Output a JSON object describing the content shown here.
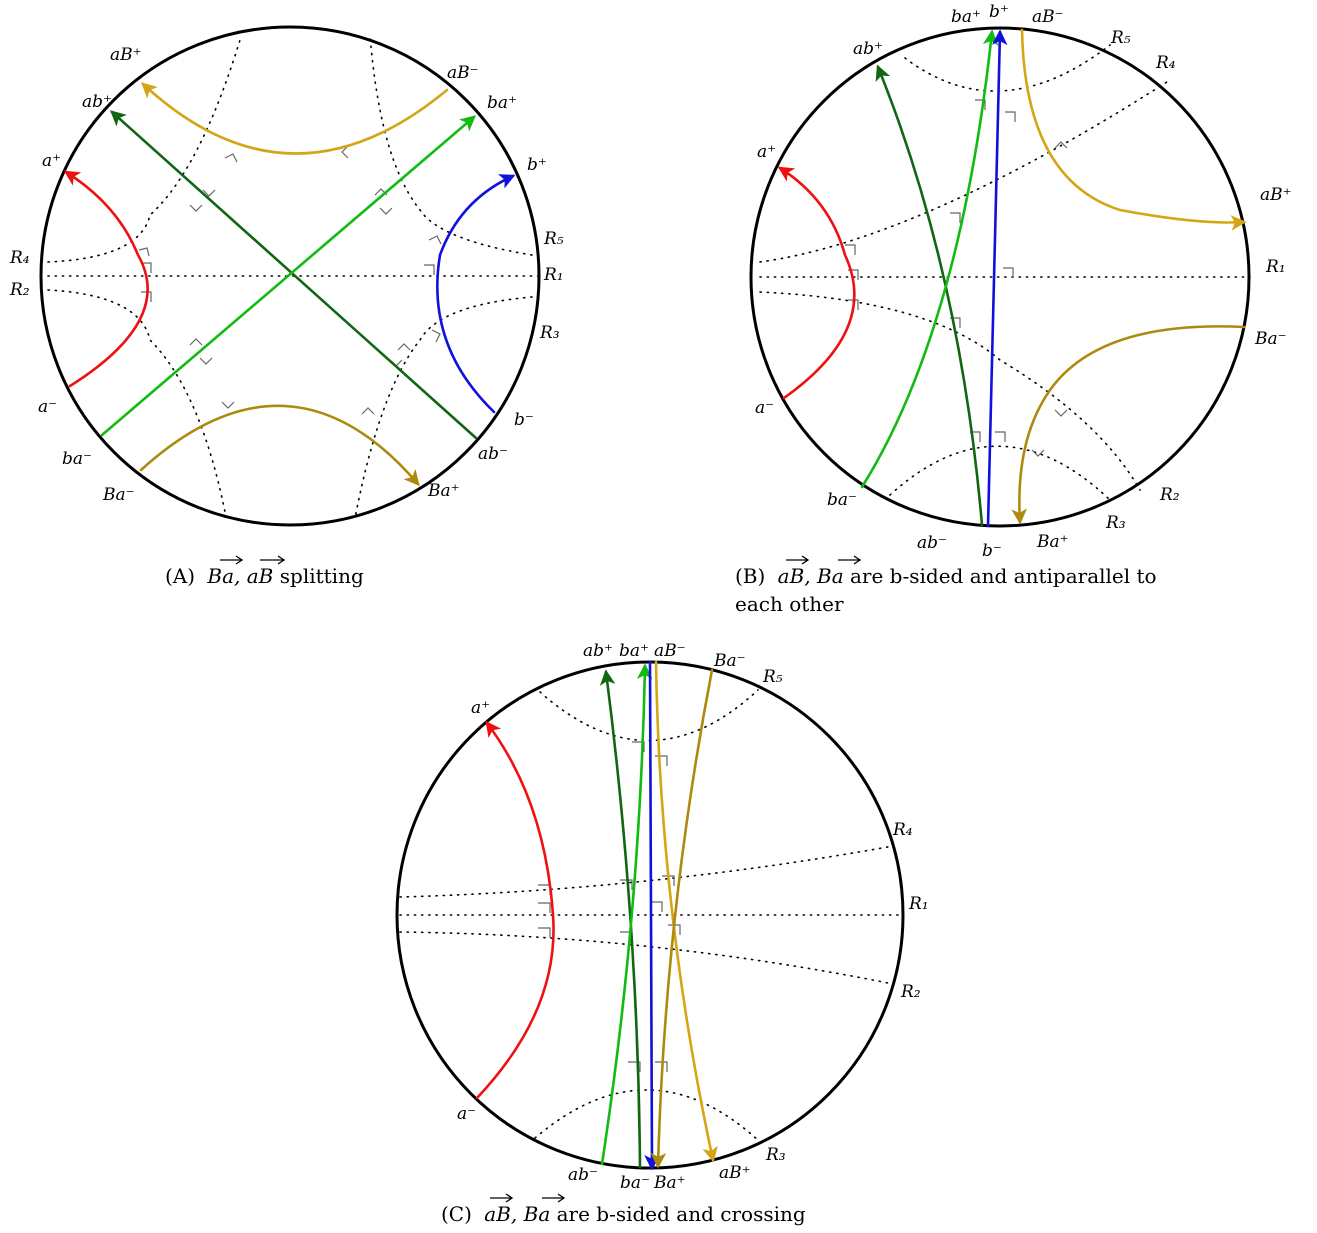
{
  "colors": {
    "red": "#ee1111",
    "blue": "#1111dd",
    "green": "#11bb11",
    "darkgreen": "#116611",
    "gold": "#d4a514",
    "olive": "#ad8a0e",
    "black": "#000000",
    "rightangle": "#666666"
  },
  "panels": [
    {
      "id": "A",
      "caption": {
        "tag": "(A)",
        "math": "Ba, aB",
        "rest": " splitting",
        "rest2": ""
      },
      "labels": {
        "aBp": "aB⁺",
        "abp": "ab⁺",
        "ap": "a⁺",
        "R4": "R₄",
        "R2": "R₂",
        "am": "a⁻",
        "bam": "ba⁻",
        "Bam": "Ba⁻",
        "aBm": "aB⁻",
        "bap": "ba⁺",
        "bp": "b⁺",
        "R5": "R₅",
        "R1": "R₁",
        "R3": "R₃",
        "bm": "b⁻",
        "abm": "ab⁻",
        "Bap": "Ba⁺"
      }
    },
    {
      "id": "B",
      "caption": {
        "tag": "(B)",
        "math": "aB,  Ba",
        "rest": " are b-sided and antiparallel to",
        "rest2": "each other"
      },
      "labels": {
        "bap": "ba⁺",
        "bp": "b⁺",
        "aBm": "aB⁻",
        "R5": "R₅",
        "abp": "ab⁺",
        "R4": "R₄",
        "ap": "a⁺",
        "aBp": "aB⁺",
        "R1": "R₁",
        "Bam": "Ba⁻",
        "am": "a⁻",
        "bam": "ba⁻",
        "R2": "R₂",
        "R3": "R₃",
        "abm": "ab⁻",
        "bm": "b⁻",
        "Bap": "Ba⁺"
      }
    },
    {
      "id": "C",
      "caption": {
        "tag": "(C)",
        "math": "aB,  Ba",
        "rest": " are b-sided and crossing",
        "rest2": ""
      },
      "labels": {
        "abp": "ab⁺",
        "bap": "ba⁺",
        "aBm": "aB⁻",
        "Bam": "Ba⁻",
        "R5": "R₅",
        "ap": "a⁺",
        "R4": "R₄",
        "R1": "R₁",
        "R2": "R₂",
        "am": "a⁻",
        "abm": "ab⁻",
        "bam": "ba⁻",
        "Bap": "Ba⁺",
        "aBp": "aB⁺",
        "R3": "R₃"
      }
    }
  ]
}
